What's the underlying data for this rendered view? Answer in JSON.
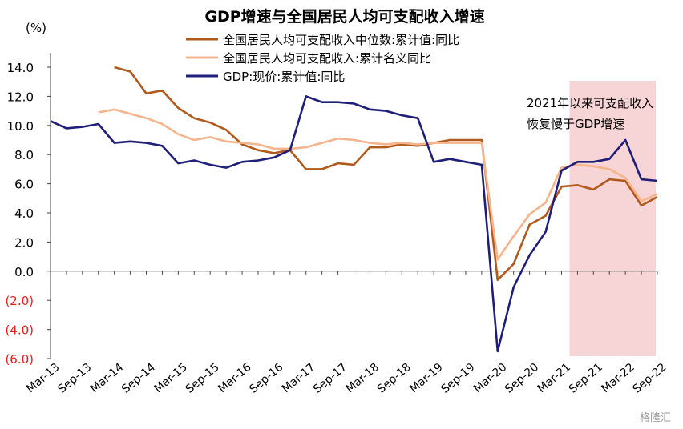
{
  "chart_data": {
    "type": "line",
    "title": "GDP增速与全国居民人均可支配收入增速",
    "unit_label": "(%)",
    "ylim": [
      -6.0,
      14.0
    ],
    "yticks": [
      "14.0",
      "12.0",
      "10.0",
      "8.0",
      "6.0",
      "4.0",
      "2.0",
      "0.0",
      "(2.0)",
      "(4.0)",
      "(6.0)"
    ],
    "xlabels": [
      "Mar-13",
      "Sep-13",
      "Mar-14",
      "Sep-14",
      "Mar-15",
      "Sep-15",
      "Mar-16",
      "Sep-16",
      "Mar-17",
      "Sep-17",
      "Mar-18",
      "Sep-18",
      "Mar-19",
      "Sep-19",
      "Mar-20",
      "Sep-20",
      "Mar-21",
      "Sep-21",
      "Mar-22",
      "Sep-22"
    ],
    "x_count": 39,
    "series": [
      {
        "name": "全国居民人均可支配收入中位数:累计值:同比",
        "color": "#b05a1e",
        "values": [
          null,
          null,
          null,
          null,
          14.0,
          13.7,
          12.2,
          12.4,
          11.2,
          10.5,
          10.2,
          9.7,
          8.7,
          8.3,
          8.1,
          8.3,
          7.0,
          7.0,
          7.4,
          7.3,
          8.5,
          8.5,
          8.7,
          8.6,
          8.8,
          9.0,
          9.0,
          9.0,
          -0.6,
          0.5,
          3.2,
          3.8,
          5.8,
          5.9,
          5.6,
          6.3,
          6.2,
          4.5,
          5.1
        ]
      },
      {
        "name": "全国居民人均可支配收入:累计名义同比",
        "color": "#f5b48c",
        "values": [
          null,
          null,
          null,
          10.9,
          11.1,
          10.8,
          10.5,
          10.1,
          9.4,
          9.0,
          9.2,
          8.9,
          8.8,
          8.7,
          8.4,
          8.4,
          8.5,
          8.8,
          9.1,
          9.0,
          8.8,
          8.7,
          8.8,
          8.7,
          8.8,
          8.8,
          8.8,
          8.8,
          0.8,
          2.4,
          3.9,
          4.7,
          7.1,
          7.3,
          7.2,
          7.0,
          6.4,
          4.8,
          5.3
        ]
      },
      {
        "name": "GDP:现价:累计值:同比",
        "color": "#1f1f7a",
        "values": [
          10.3,
          9.8,
          9.9,
          10.1,
          8.8,
          8.9,
          8.8,
          8.6,
          7.4,
          7.6,
          7.3,
          7.1,
          7.5,
          7.6,
          7.8,
          8.3,
          12.0,
          11.6,
          11.6,
          11.5,
          11.1,
          11.0,
          10.7,
          10.5,
          7.5,
          7.7,
          7.5,
          7.3,
          -5.5,
          -1.1,
          1.1,
          2.7,
          6.9,
          7.5,
          7.5,
          7.7,
          9.0,
          6.3,
          6.2
        ]
      }
    ],
    "shaded_region": {
      "x_from": 32.5,
      "x_to": 37.9,
      "color": "#f7d4d6"
    },
    "annotation": [
      "2021年以来可支配收入",
      "恢复慢于GDP增速"
    ],
    "negative_tick_color": "#e0201b",
    "grid": false,
    "legend_position": "top-center"
  },
  "watermark": "格隆汇"
}
